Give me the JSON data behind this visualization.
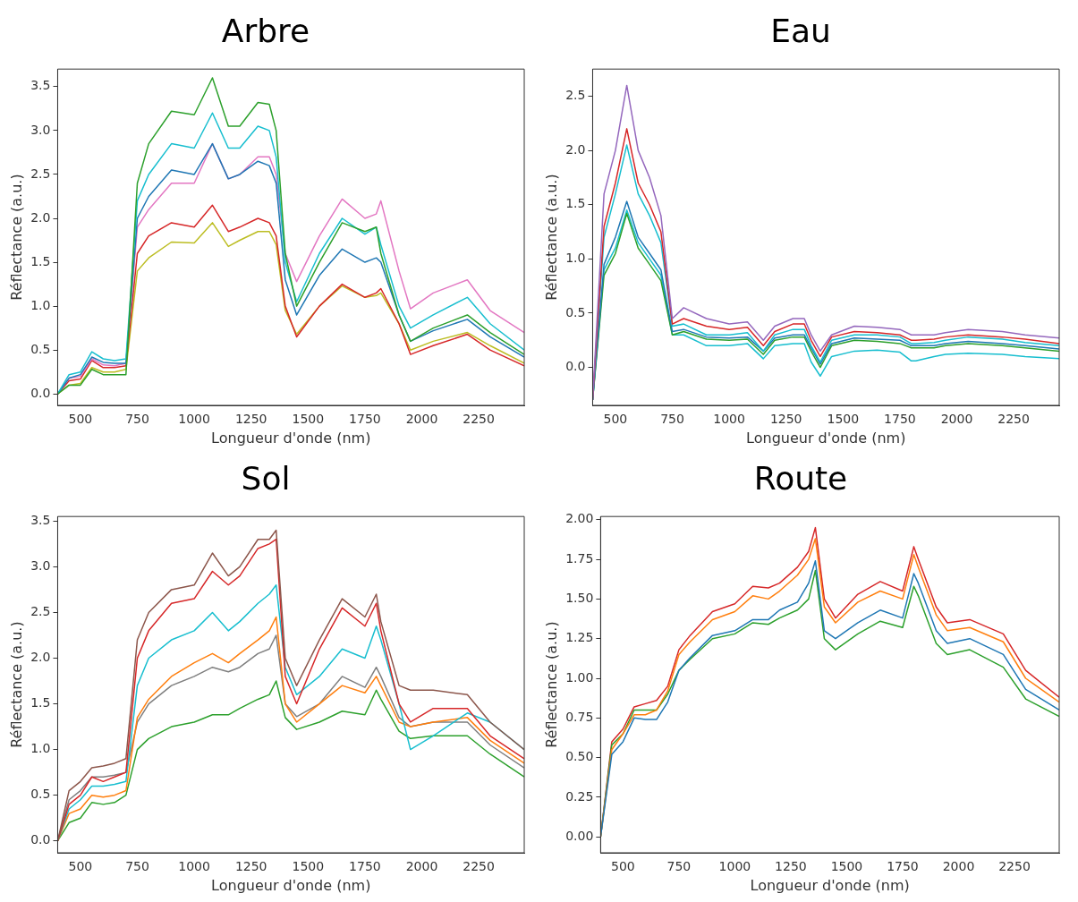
{
  "chart_data": [
    {
      "type": "line",
      "title": "Arbre",
      "xlabel": "Longueur d'onde (nm)",
      "ylabel": "Réflectance (a.u.)",
      "xlim": [
        400,
        2450
      ],
      "xticks": [
        500,
        750,
        1000,
        1250,
        1500,
        1750,
        2000,
        2250
      ],
      "ylim": [
        -0.13,
        3.7
      ],
      "yticks": [
        {
          "value": 0,
          "label": "0.0"
        },
        0.5,
        {
          "value": 1,
          "label": "1.0"
        },
        1.5,
        {
          "value": 2,
          "label": "2.0"
        },
        2.5,
        {
          "value": 3,
          "label": "3.0"
        },
        3.5
      ],
      "grid": false,
      "x": [
        400,
        450,
        500,
        550,
        600,
        650,
        700,
        750,
        800,
        900,
        1000,
        1080,
        1150,
        1200,
        1280,
        1330,
        1360,
        1400,
        1450,
        1550,
        1650,
        1750,
        1800,
        1820,
        1900,
        1950,
        2050,
        2200,
        2300,
        2450
      ],
      "series": [
        {
          "color": "#2ca02c",
          "values": [
            0,
            0.1,
            0.1,
            0.28,
            0.22,
            0.22,
            0.22,
            2.4,
            2.85,
            3.22,
            3.18,
            3.6,
            3.05,
            3.05,
            3.32,
            3.3,
            3.0,
            1.6,
            1.0,
            1.5,
            1.95,
            1.85,
            1.9,
            1.6,
            0.9,
            0.6,
            0.75,
            0.9,
            0.7,
            0.45
          ]
        },
        {
          "color": "#17becf",
          "values": [
            0,
            0.22,
            0.25,
            0.48,
            0.4,
            0.38,
            0.4,
            2.2,
            2.5,
            2.85,
            2.8,
            3.2,
            2.8,
            2.8,
            3.05,
            3.0,
            2.7,
            1.5,
            1.05,
            1.6,
            2.0,
            1.82,
            1.9,
            1.7,
            1.0,
            0.75,
            0.9,
            1.1,
            0.8,
            0.5
          ]
        },
        {
          "color": "#1f77b4",
          "values": [
            0,
            0.18,
            0.22,
            0.42,
            0.36,
            0.35,
            0.35,
            2.0,
            2.25,
            2.55,
            2.5,
            2.85,
            2.45,
            2.5,
            2.65,
            2.6,
            2.4,
            1.3,
            0.9,
            1.35,
            1.65,
            1.5,
            1.55,
            1.5,
            0.9,
            0.6,
            0.72,
            0.85,
            0.65,
            0.42
          ]
        },
        {
          "color": "#e377c2",
          "values": [
            0,
            0.18,
            0.2,
            0.4,
            0.33,
            0.32,
            0.35,
            1.9,
            2.1,
            2.4,
            2.4,
            2.85,
            2.45,
            2.5,
            2.7,
            2.7,
            2.5,
            1.6,
            1.28,
            1.8,
            2.22,
            2.0,
            2.05,
            2.2,
            1.4,
            0.97,
            1.15,
            1.3,
            0.95,
            0.7
          ]
        },
        {
          "color": "#d62728",
          "values": [
            0,
            0.15,
            0.17,
            0.38,
            0.3,
            0.3,
            0.32,
            1.6,
            1.8,
            1.95,
            1.9,
            2.15,
            1.85,
            1.9,
            2.0,
            1.95,
            1.8,
            1.0,
            0.65,
            1.0,
            1.25,
            1.1,
            1.15,
            1.2,
            0.8,
            0.45,
            0.55,
            0.68,
            0.5,
            0.32
          ]
        },
        {
          "color": "#bcbd22",
          "values": [
            0,
            0.1,
            0.12,
            0.3,
            0.25,
            0.25,
            0.28,
            1.4,
            1.55,
            1.73,
            1.72,
            1.95,
            1.68,
            1.75,
            1.85,
            1.85,
            1.7,
            0.95,
            0.68,
            1.0,
            1.23,
            1.1,
            1.12,
            1.15,
            0.8,
            0.5,
            0.6,
            0.7,
            0.55,
            0.35
          ]
        }
      ]
    },
    {
      "type": "line",
      "title": "Eau",
      "xlabel": "Longueur d'onde (nm)",
      "ylabel": "Réflectance (a.u.)",
      "xlim": [
        400,
        2450
      ],
      "xticks": [
        500,
        750,
        1000,
        1250,
        1500,
        1750,
        2000,
        2250
      ],
      "ylim": [
        -0.35,
        2.75
      ],
      "yticks": [
        {
          "value": 0,
          "label": "0.0"
        },
        0.5,
        {
          "value": 1,
          "label": "1.0"
        },
        1.5,
        {
          "value": 2,
          "label": "2.0"
        },
        2.5
      ],
      "grid": false,
      "x": [
        400,
        450,
        500,
        550,
        600,
        650,
        700,
        750,
        800,
        900,
        1000,
        1080,
        1150,
        1200,
        1280,
        1330,
        1360,
        1400,
        1450,
        1550,
        1650,
        1750,
        1800,
        1820,
        1900,
        1950,
        2050,
        2200,
        2300,
        2450
      ],
      "series": [
        {
          "color": "#9467bd",
          "values": [
            -0.3,
            1.6,
            2.0,
            2.6,
            2.0,
            1.75,
            1.4,
            0.45,
            0.55,
            0.45,
            0.4,
            0.42,
            0.25,
            0.38,
            0.45,
            0.45,
            0.3,
            0.15,
            0.3,
            0.38,
            0.37,
            0.35,
            0.3,
            0.3,
            0.3,
            0.32,
            0.35,
            0.33,
            0.3,
            0.27
          ]
        },
        {
          "color": "#d62728",
          "values": [
            -0.3,
            1.3,
            1.7,
            2.2,
            1.7,
            1.5,
            1.25,
            0.4,
            0.45,
            0.38,
            0.35,
            0.37,
            0.2,
            0.33,
            0.4,
            0.4,
            0.25,
            0.1,
            0.28,
            0.33,
            0.32,
            0.3,
            0.25,
            0.25,
            0.26,
            0.28,
            0.3,
            0.28,
            0.26,
            0.22
          ]
        },
        {
          "color": "#17becf",
          "values": [
            -0.3,
            1.2,
            1.6,
            2.05,
            1.6,
            1.4,
            1.15,
            0.38,
            0.4,
            0.3,
            0.3,
            0.32,
            0.15,
            0.3,
            0.35,
            0.35,
            0.2,
            0.05,
            0.25,
            0.3,
            0.3,
            0.28,
            0.22,
            0.22,
            0.23,
            0.25,
            0.28,
            0.26,
            0.23,
            0.2
          ]
        },
        {
          "color": "#1f77b4",
          "values": [
            -0.3,
            0.95,
            1.2,
            1.53,
            1.2,
            1.05,
            0.9,
            0.33,
            0.35,
            0.28,
            0.27,
            0.28,
            0.15,
            0.27,
            0.3,
            0.3,
            0.18,
            0.03,
            0.22,
            0.27,
            0.26,
            0.25,
            0.2,
            0.2,
            0.2,
            0.22,
            0.24,
            0.22,
            0.2,
            0.17
          ]
        },
        {
          "color": "#2ca02c",
          "values": [
            -0.3,
            0.85,
            1.05,
            1.42,
            1.1,
            0.95,
            0.8,
            0.3,
            0.33,
            0.26,
            0.25,
            0.26,
            0.12,
            0.25,
            0.28,
            0.28,
            0.15,
            0.0,
            0.2,
            0.25,
            0.24,
            0.22,
            0.18,
            0.18,
            0.18,
            0.2,
            0.22,
            0.2,
            0.18,
            0.15
          ]
        },
        {
          "color": "#17becf",
          "values": [
            -0.3,
            0.9,
            1.1,
            1.45,
            1.15,
            1.0,
            0.85,
            0.3,
            0.3,
            0.2,
            0.2,
            0.22,
            0.08,
            0.2,
            0.22,
            0.22,
            0.05,
            -0.08,
            0.1,
            0.15,
            0.16,
            0.14,
            0.06,
            0.06,
            0.1,
            0.12,
            0.13,
            0.12,
            0.1,
            0.08
          ]
        }
      ]
    },
    {
      "type": "line",
      "title": "Sol",
      "xlabel": "Longueur d'onde (nm)",
      "ylabel": "Réflectance (a.u.)",
      "xlim": [
        400,
        2450
      ],
      "xticks": [
        500,
        750,
        1000,
        1250,
        1500,
        1750,
        2000,
        2250
      ],
      "ylim": [
        -0.13,
        3.55
      ],
      "yticks": [
        {
          "value": 0,
          "label": "0.0"
        },
        0.5,
        {
          "value": 1,
          "label": "1.0"
        },
        1.5,
        {
          "value": 2,
          "label": "2.0"
        },
        2.5,
        {
          "value": 3,
          "label": "3.0"
        },
        3.5
      ],
      "grid": false,
      "x": [
        400,
        450,
        500,
        550,
        600,
        650,
        700,
        750,
        800,
        900,
        1000,
        1080,
        1150,
        1200,
        1280,
        1330,
        1360,
        1400,
        1450,
        1550,
        1650,
        1750,
        1800,
        1820,
        1900,
        1950,
        2050,
        2200,
        2300,
        2450
      ],
      "series": [
        {
          "color": "#8c564b",
          "values": [
            0,
            0.55,
            0.65,
            0.8,
            0.82,
            0.85,
            0.9,
            2.2,
            2.5,
            2.75,
            2.8,
            3.15,
            2.9,
            3.0,
            3.3,
            3.3,
            3.4,
            2.0,
            1.7,
            2.2,
            2.65,
            2.45,
            2.7,
            2.4,
            1.7,
            1.65,
            1.65,
            1.6,
            1.3,
            1.0
          ]
        },
        {
          "color": "#d62728",
          "values": [
            0,
            0.4,
            0.5,
            0.7,
            0.65,
            0.7,
            0.75,
            2.0,
            2.3,
            2.6,
            2.65,
            2.95,
            2.8,
            2.9,
            3.2,
            3.25,
            3.3,
            1.8,
            1.5,
            2.1,
            2.55,
            2.35,
            2.6,
            2.3,
            1.5,
            1.3,
            1.45,
            1.45,
            1.15,
            0.9
          ]
        },
        {
          "color": "#17becf",
          "values": [
            0,
            0.35,
            0.45,
            0.6,
            0.6,
            0.62,
            0.65,
            1.7,
            2.0,
            2.2,
            2.3,
            2.5,
            2.3,
            2.4,
            2.6,
            2.7,
            2.8,
            1.9,
            1.6,
            1.8,
            2.1,
            2.0,
            2.35,
            2.2,
            1.5,
            1.0,
            1.15,
            1.4,
            1.3,
            1.0
          ]
        },
        {
          "color": "#ff7f0e",
          "values": [
            0,
            0.3,
            0.35,
            0.5,
            0.48,
            0.5,
            0.55,
            1.35,
            1.55,
            1.8,
            1.95,
            2.05,
            1.95,
            2.05,
            2.2,
            2.3,
            2.45,
            1.5,
            1.3,
            1.5,
            1.7,
            1.62,
            1.8,
            1.7,
            1.3,
            1.25,
            1.3,
            1.35,
            1.1,
            0.85
          ]
        },
        {
          "color": "#7f7f7f",
          "values": [
            0,
            0.45,
            0.55,
            0.7,
            0.7,
            0.72,
            0.75,
            1.3,
            1.5,
            1.7,
            1.8,
            1.9,
            1.85,
            1.9,
            2.05,
            2.1,
            2.25,
            1.5,
            1.36,
            1.5,
            1.8,
            1.68,
            1.9,
            1.8,
            1.35,
            1.25,
            1.3,
            1.3,
            1.05,
            0.8
          ]
        },
        {
          "color": "#2ca02c",
          "values": [
            0,
            0.2,
            0.25,
            0.42,
            0.4,
            0.42,
            0.5,
            1.0,
            1.12,
            1.25,
            1.3,
            1.38,
            1.38,
            1.45,
            1.55,
            1.6,
            1.75,
            1.35,
            1.22,
            1.3,
            1.42,
            1.38,
            1.65,
            1.55,
            1.2,
            1.12,
            1.15,
            1.15,
            0.95,
            0.7
          ]
        }
      ]
    },
    {
      "type": "line",
      "title": "Route",
      "xlabel": "Longueur d'onde (nm)",
      "ylabel": "Réflectance (a.u.)",
      "xlim": [
        400,
        2450
      ],
      "xticks": [
        500,
        750,
        1000,
        1250,
        1500,
        1750,
        2000,
        2250
      ],
      "ylim": [
        -0.1,
        2.02
      ],
      "yticks": [
        {
          "value": 0,
          "label": "0.00"
        },
        0.25,
        {
          "value": 0.5,
          "label": "0.50"
        },
        0.75,
        {
          "value": 1,
          "label": "1.00"
        },
        1.25,
        {
          "value": 1.5,
          "label": "1.50"
        },
        1.75,
        {
          "value": 2,
          "label": "2.00"
        }
      ],
      "grid": false,
      "x": [
        400,
        450,
        500,
        550,
        600,
        650,
        700,
        750,
        800,
        900,
        1000,
        1080,
        1150,
        1200,
        1280,
        1330,
        1360,
        1400,
        1450,
        1550,
        1650,
        1750,
        1800,
        1820,
        1900,
        1950,
        2050,
        2200,
        2300,
        2450
      ],
      "series": [
        {
          "color": "#1f77b4",
          "values": [
            0,
            0.52,
            0.6,
            0.75,
            0.74,
            0.74,
            0.85,
            1.05,
            1.13,
            1.27,
            1.3,
            1.37,
            1.37,
            1.43,
            1.48,
            1.6,
            1.74,
            1.3,
            1.25,
            1.35,
            1.43,
            1.38,
            1.66,
            1.6,
            1.3,
            1.22,
            1.25,
            1.15,
            0.93,
            0.8
          ]
        },
        {
          "color": "#ff7f0e",
          "values": [
            0,
            0.55,
            0.65,
            0.77,
            0.77,
            0.8,
            0.92,
            1.15,
            1.23,
            1.37,
            1.42,
            1.52,
            1.5,
            1.55,
            1.65,
            1.75,
            1.88,
            1.45,
            1.35,
            1.48,
            1.55,
            1.5,
            1.78,
            1.7,
            1.4,
            1.3,
            1.32,
            1.23,
            1.0,
            0.85
          ]
        },
        {
          "color": "#2ca02c",
          "values": [
            0,
            0.58,
            0.65,
            0.8,
            0.8,
            0.8,
            0.9,
            1.05,
            1.12,
            1.25,
            1.28,
            1.35,
            1.34,
            1.38,
            1.43,
            1.5,
            1.68,
            1.25,
            1.18,
            1.28,
            1.36,
            1.32,
            1.58,
            1.52,
            1.22,
            1.15,
            1.18,
            1.07,
            0.87,
            0.76
          ]
        },
        {
          "color": "#d62728",
          "values": [
            0,
            0.6,
            0.68,
            0.82,
            0.84,
            0.86,
            0.95,
            1.18,
            1.27,
            1.42,
            1.47,
            1.58,
            1.57,
            1.6,
            1.7,
            1.8,
            1.95,
            1.5,
            1.38,
            1.53,
            1.61,
            1.55,
            1.83,
            1.75,
            1.45,
            1.35,
            1.37,
            1.28,
            1.05,
            0.88
          ]
        }
      ]
    }
  ]
}
